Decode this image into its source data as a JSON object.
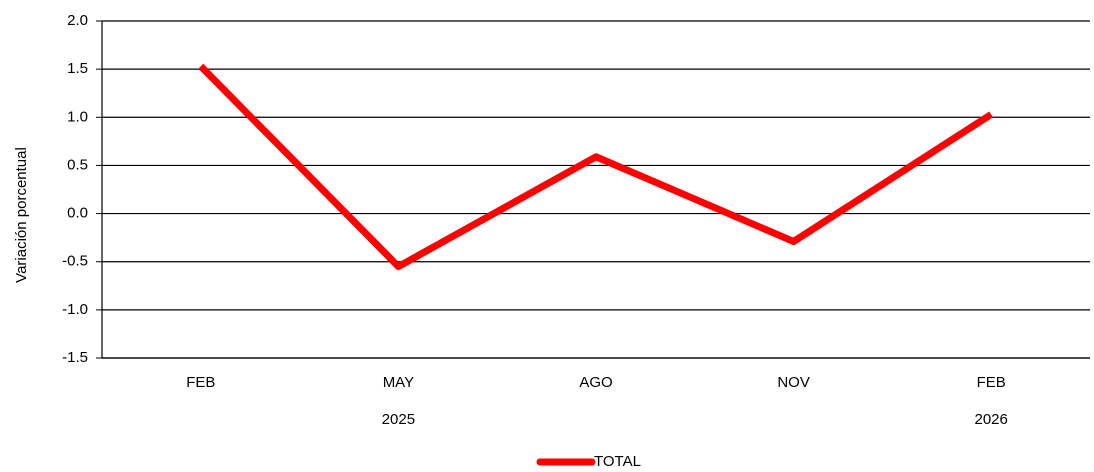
{
  "chart_data": {
    "type": "line",
    "y_label": "Variación porcentual",
    "categories": [
      "FEB",
      "MAY",
      "AGO",
      "NOV",
      "FEB"
    ],
    "x_sublabels": [
      null,
      "2025",
      null,
      null,
      "2026"
    ],
    "series": [
      {
        "name": "TOTAL",
        "color": "#ff0000",
        "values": [
          1.53,
          -0.55,
          0.59,
          -0.29,
          1.03
        ]
      }
    ],
    "ylim": [
      -1.5,
      2.0
    ],
    "yticks": [
      -1.5,
      {
        "value": -1.0,
        "label": "-1.0"
      },
      -0.5,
      {
        "value": 0.0,
        "label": "0.0"
      },
      0.5,
      {
        "value": 1.0,
        "label": "1.0"
      },
      1.5,
      {
        "value": 2.0,
        "label": "2.0"
      }
    ],
    "grid": true,
    "legend": "bottom"
  }
}
